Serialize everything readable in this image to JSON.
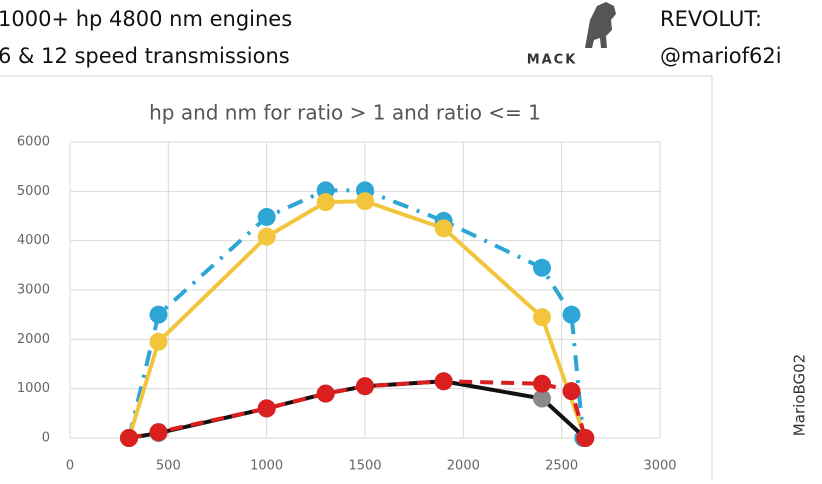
{
  "header": {
    "line1": "1000+ hp 4800 nm engines",
    "line2": "6 & 12 speed transmissions",
    "logo": "MACK",
    "account_label": "REVOLUT:",
    "account": "@mariof62i"
  },
  "watermark": "MarioBG02",
  "chart_data": {
    "type": "line",
    "title": "hp and nm for ratio > 1 and ratio <= 1",
    "xlim": [
      0,
      3000
    ],
    "xticks": [
      0,
      500,
      1000,
      1500,
      2000,
      2500,
      3000
    ],
    "ylim": [
      0,
      6000
    ],
    "yticks": [
      0,
      1000,
      2000,
      3000,
      4000,
      5000,
      6000
    ],
    "grid": true,
    "series": [
      {
        "color": "#2ea6d5",
        "dash": "16 9 3 9",
        "marker_color": "#2ea6d5",
        "x": [
          300,
          450,
          1000,
          1300,
          1500,
          1900,
          2400,
          2550,
          2610
        ],
        "values": [
          0,
          2500,
          4480,
          5020,
          5020,
          4400,
          3450,
          2500,
          0
        ]
      },
      {
        "color": "#f2c53d",
        "dash": "none",
        "marker_color": "#f2c53d",
        "x": [
          300,
          450,
          1000,
          1300,
          1500,
          1900,
          2400,
          2620
        ],
        "values": [
          0,
          1950,
          4080,
          4780,
          4800,
          4250,
          2450,
          0
        ]
      },
      {
        "color": "#111111",
        "dash": "none",
        "marker_color": "#8a8a8a",
        "x": [
          300,
          450,
          1000,
          1300,
          1500,
          1900,
          2400,
          2620
        ],
        "values": [
          0,
          100,
          600,
          900,
          1050,
          1150,
          800,
          0
        ]
      },
      {
        "color": "#d91f1f",
        "dash": "13 8",
        "marker_color": "#d91f1f",
        "x": [
          300,
          450,
          1000,
          1300,
          1500,
          1900,
          2400,
          2550,
          2620
        ],
        "values": [
          0,
          120,
          600,
          900,
          1050,
          1150,
          1100,
          950,
          0
        ]
      }
    ]
  }
}
